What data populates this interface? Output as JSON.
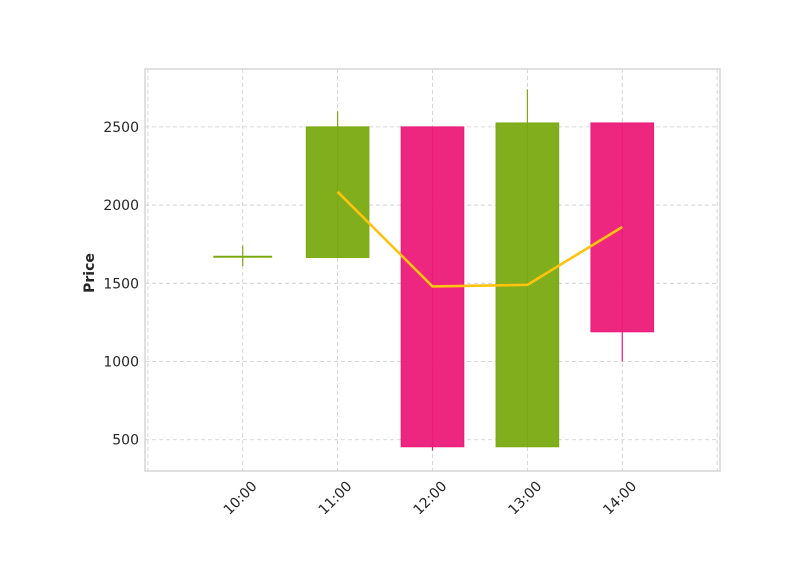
{
  "chart_data": {
    "type": "candlestick",
    "title": "",
    "xlabel": "",
    "ylabel": "Price",
    "categories": [
      "10:00",
      "11:00",
      "12:00",
      "13:00",
      "14:00"
    ],
    "ohlc": [
      {
        "time": "10:00",
        "open": 1670,
        "high": 1740,
        "low": 1610,
        "close": 1670
      },
      {
        "time": "11:00",
        "open": 1665,
        "high": 2600,
        "low": 1665,
        "close": 2500
      },
      {
        "time": "12:00",
        "open": 2500,
        "high": 2500,
        "low": 430,
        "close": 455
      },
      {
        "time": "13:00",
        "open": 455,
        "high": 2740,
        "low": 455,
        "close": 2525
      },
      {
        "time": "14:00",
        "open": 2525,
        "high": 2525,
        "low": 1000,
        "close": 1190
      }
    ],
    "line_series": {
      "values": [
        null,
        2085,
        1480,
        1490,
        1860
      ]
    },
    "yticks": [
      500,
      1000,
      1500,
      2000,
      2500
    ],
    "ylim": [
      300,
      2870
    ],
    "xlim": [
      8.97,
      15.03
    ],
    "grid": true,
    "colors": {
      "up": "#7aaa10",
      "down": "#ec1a78",
      "line": "#ffc20e",
      "grid": "#cccccc",
      "frame": "#d9d9d9"
    }
  }
}
